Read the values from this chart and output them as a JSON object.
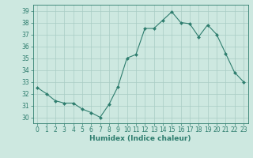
{
  "x": [
    0,
    1,
    2,
    3,
    4,
    5,
    6,
    7,
    8,
    9,
    10,
    11,
    12,
    13,
    14,
    15,
    16,
    17,
    18,
    19,
    20,
    21,
    22,
    23
  ],
  "y": [
    32.5,
    32.0,
    31.4,
    31.2,
    31.2,
    30.7,
    30.4,
    30.0,
    31.1,
    32.6,
    35.0,
    35.3,
    37.5,
    37.5,
    38.2,
    38.9,
    38.0,
    37.9,
    36.8,
    37.8,
    37.0,
    35.4,
    33.8,
    33.0
  ],
  "line_color": "#2e7d6e",
  "marker": "D",
  "marker_size": 2,
  "bg_color": "#cde8e0",
  "grid_color": "#a8ccc4",
  "axis_color": "#2e7d6e",
  "xlabel": "Humidex (Indice chaleur)",
  "ylim": [
    29.5,
    39.5
  ],
  "xlim": [
    -0.5,
    23.5
  ],
  "yticks": [
    30,
    31,
    32,
    33,
    34,
    35,
    36,
    37,
    38,
    39
  ],
  "xticks": [
    0,
    1,
    2,
    3,
    4,
    5,
    6,
    7,
    8,
    9,
    10,
    11,
    12,
    13,
    14,
    15,
    16,
    17,
    18,
    19,
    20,
    21,
    22,
    23
  ],
  "label_fontsize": 6.5,
  "tick_fontsize": 5.5
}
